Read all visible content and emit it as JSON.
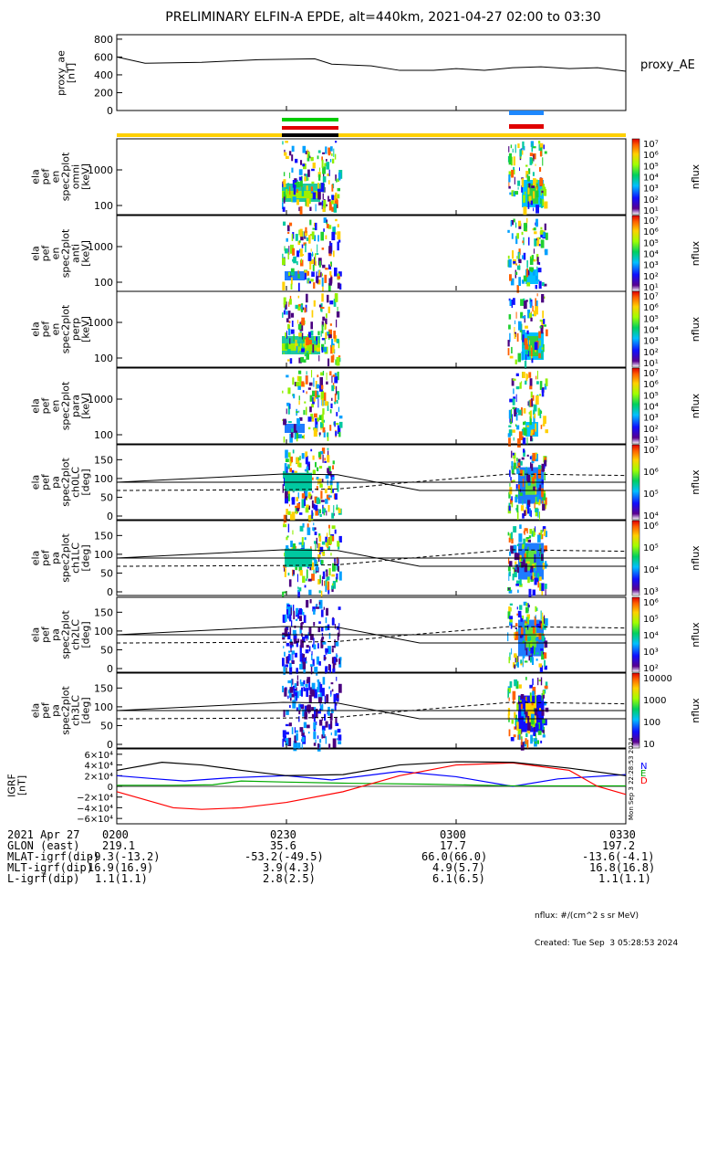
{
  "title": "PRELIMINARY ELFIN-A EPDE, alt=440km, 2021-04-27 02:00 to 03:30",
  "proxy_panel": {
    "ylabel_lines": [
      "proxy_ae",
      "[nT]"
    ],
    "legend": "proxy_AE",
    "yticks": [
      "800",
      "600",
      "400",
      "200",
      "0"
    ]
  },
  "spec_panels": [
    {
      "ylabel_lines": [
        "ela",
        "pef",
        "en",
        "spec2plot",
        "omni",
        "[keV]"
      ],
      "yticks": [
        "1000",
        "100"
      ]
    },
    {
      "ylabel_lines": [
        "ela",
        "pef",
        "en",
        "spec2plot",
        "anti",
        "[keV]"
      ],
      "yticks": [
        "1000",
        "100"
      ]
    },
    {
      "ylabel_lines": [
        "ela",
        "pef",
        "en",
        "spec2plot",
        "perp",
        "[keV]"
      ],
      "yticks": [
        "1000",
        "100"
      ]
    },
    {
      "ylabel_lines": [
        "ela",
        "pef",
        "en",
        "spec2plot",
        "para",
        "[keV]"
      ],
      "yticks": [
        "1000",
        "100"
      ]
    }
  ],
  "pa_panels": [
    {
      "ylabel_lines": [
        "ela",
        "pef",
        "pa",
        "spec2plot",
        "ch0LC",
        "[deg]"
      ],
      "yticks": [
        "150",
        "100",
        "50",
        "0"
      ]
    },
    {
      "ylabel_lines": [
        "ela",
        "pef",
        "pa",
        "spec2plot",
        "ch1LC",
        "[deg]"
      ],
      "yticks": [
        "150",
        "100",
        "50",
        "0"
      ]
    },
    {
      "ylabel_lines": [
        "ela",
        "pef",
        "pa",
        "spec2plot",
        "ch2LC",
        "[deg]"
      ],
      "yticks": [
        "150",
        "100",
        "50",
        "0"
      ]
    },
    {
      "ylabel_lines": [
        "ela",
        "pef",
        "pa",
        "spec2plot",
        "ch3LC",
        "[deg]"
      ],
      "yticks": [
        "150",
        "100",
        "50",
        "0"
      ]
    }
  ],
  "igrf_panel": {
    "ylabel_lines": [
      "IGRF",
      "[nT]"
    ],
    "yticks": [
      "6×10⁴",
      "4×10⁴",
      "2×10⁴",
      "0",
      "−2×10⁴",
      "−4×10⁴",
      "−6×10⁴"
    ],
    "legend": [
      {
        "label": "N",
        "color": "#0000ff"
      },
      {
        "label": "E",
        "color": "#00aa00"
      },
      {
        "label": "D",
        "color": "#ff0000"
      }
    ],
    "side_text": "Mon Sep  3 22:28:53 2024"
  },
  "colorbars": {
    "label": "nflux",
    "sets": [
      [
        "10⁷",
        "10⁶",
        "10⁵",
        "10⁴",
        "10³",
        "10²",
        "10¹"
      ],
      [
        "10⁷",
        "10⁶",
        "10⁵",
        "10⁴",
        "10³",
        "10²",
        "10¹"
      ],
      [
        "10⁷",
        "10⁶",
        "10⁵",
        "10⁴",
        "10³",
        "10²",
        "10¹"
      ],
      [
        "10⁷",
        "10⁶",
        "10⁵",
        "10⁴",
        "10³",
        "10²",
        "10¹"
      ],
      [
        "10⁷",
        "10⁶",
        "10⁵",
        "10⁴"
      ],
      [
        "10⁶",
        "10⁵",
        "10⁴",
        "10³"
      ],
      [
        "10⁶",
        "10⁵",
        "10⁴",
        "10³",
        "10²"
      ],
      [
        "10000",
        "1000",
        "100",
        "10"
      ]
    ]
  },
  "x_axis": {
    "row_labels": [
      "2021 Apr 27",
      "GLON (east)",
      "MLAT-igrf(dip)",
      "MLT-igrf(dip)",
      "L-igrf(dip)"
    ],
    "columns": [
      [
        "0200",
        "219.1",
        "-9.3(-13.2)",
        "16.9(16.9)",
        "1.1(1.1)"
      ],
      [
        "0230",
        "35.6",
        "-53.2(-49.5)",
        "3.9(4.3)",
        "2.8(2.5)"
      ],
      [
        "0300",
        "17.7",
        "66.0(66.0)",
        "4.9(5.7)",
        "6.1(6.5)"
      ],
      [
        "0330",
        "197.2",
        "-13.6(-4.1)",
        "16.8(16.8)",
        "1.1(1.1)"
      ]
    ]
  },
  "footer": {
    "units": "nflux: #/(cm^2 s sr MeV)",
    "created": "Created: Tue Sep  3 05:28:53 2024"
  },
  "chart_data": {
    "type": "line",
    "x_range_hhmm": [
      "0200",
      "0330"
    ],
    "proxy_ae": {
      "x_minutes": [
        0,
        5,
        15,
        25,
        35,
        38,
        45,
        50,
        56,
        60,
        65,
        70,
        75,
        80,
        85,
        90
      ],
      "y_nT": [
        600,
        530,
        540,
        570,
        580,
        520,
        500,
        450,
        450,
        470,
        450,
        480,
        490,
        470,
        480,
        440
      ],
      "ylim": [
        0,
        850
      ]
    },
    "igrf": {
      "ylim": [
        -70000,
        70000
      ],
      "series": [
        {
          "name": "N",
          "color": "#0000ff",
          "x_minutes": [
            0,
            7,
            12,
            20,
            30,
            38,
            50,
            60,
            70,
            78,
            90
          ],
          "y": [
            20000,
            14000,
            10000,
            16000,
            20000,
            12000,
            28000,
            18000,
            0,
            14000,
            22000
          ]
        },
        {
          "name": "E",
          "color": "#00aa00",
          "x_minutes": [
            0,
            10,
            17,
            22,
            30,
            40,
            55,
            70,
            85,
            90
          ],
          "y": [
            2000,
            2000,
            3000,
            10000,
            8000,
            6000,
            4000,
            1000,
            1000,
            1000
          ]
        },
        {
          "name": "D",
          "color": "#ff0000",
          "x_minutes": [
            0,
            10,
            15,
            22,
            30,
            40,
            50,
            60,
            70,
            80,
            85,
            90
          ],
          "y": [
            -10000,
            -40000,
            -43000,
            -40000,
            -30000,
            -10000,
            20000,
            40000,
            44000,
            30000,
            0,
            -15000
          ]
        },
        {
          "name": "total",
          "color": "#000000",
          "x_minutes": [
            0,
            8,
            15,
            22,
            30,
            40,
            50,
            60,
            70,
            80,
            90
          ],
          "y": [
            30000,
            45000,
            40000,
            30000,
            20000,
            22000,
            40000,
            46000,
            45000,
            34000,
            20000
          ]
        }
      ]
    }
  }
}
